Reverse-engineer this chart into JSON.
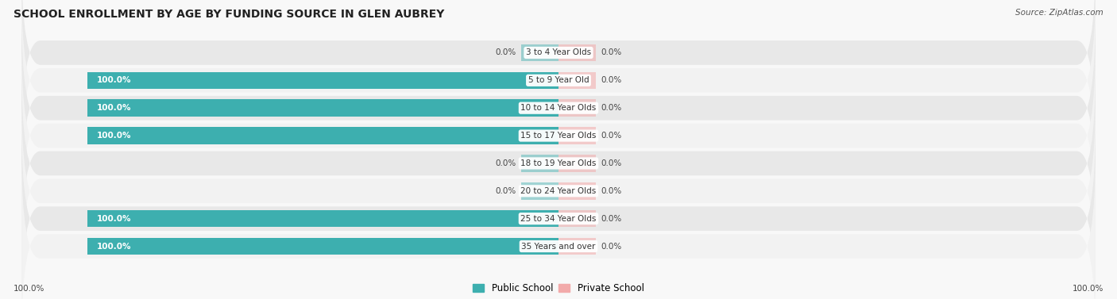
{
  "title": "SCHOOL ENROLLMENT BY AGE BY FUNDING SOURCE IN GLEN AUBREY",
  "source": "Source: ZipAtlas.com",
  "categories": [
    "3 to 4 Year Olds",
    "5 to 9 Year Old",
    "10 to 14 Year Olds",
    "15 to 17 Year Olds",
    "18 to 19 Year Olds",
    "20 to 24 Year Olds",
    "25 to 34 Year Olds",
    "35 Years and over"
  ],
  "public_values": [
    0.0,
    100.0,
    100.0,
    100.0,
    0.0,
    0.0,
    100.0,
    100.0
  ],
  "private_values": [
    0.0,
    0.0,
    0.0,
    0.0,
    0.0,
    0.0,
    0.0,
    0.0
  ],
  "public_color": "#3DAFAF",
  "private_color": "#F2AAAA",
  "row_bg_color": "#E8E8E8",
  "row_alt_bg_color": "#F2F2F2",
  "fig_bg_color": "#F8F8F8",
  "title_fontsize": 10,
  "label_fontsize": 7.5,
  "source_fontsize": 7.5,
  "axis_label_left": "100.0%",
  "axis_label_right": "100.0%",
  "legend_public": "Public School",
  "legend_private": "Private School",
  "xlim_left": -115,
  "xlim_right": 115,
  "stub_size": 8,
  "full_bar_size": 100
}
